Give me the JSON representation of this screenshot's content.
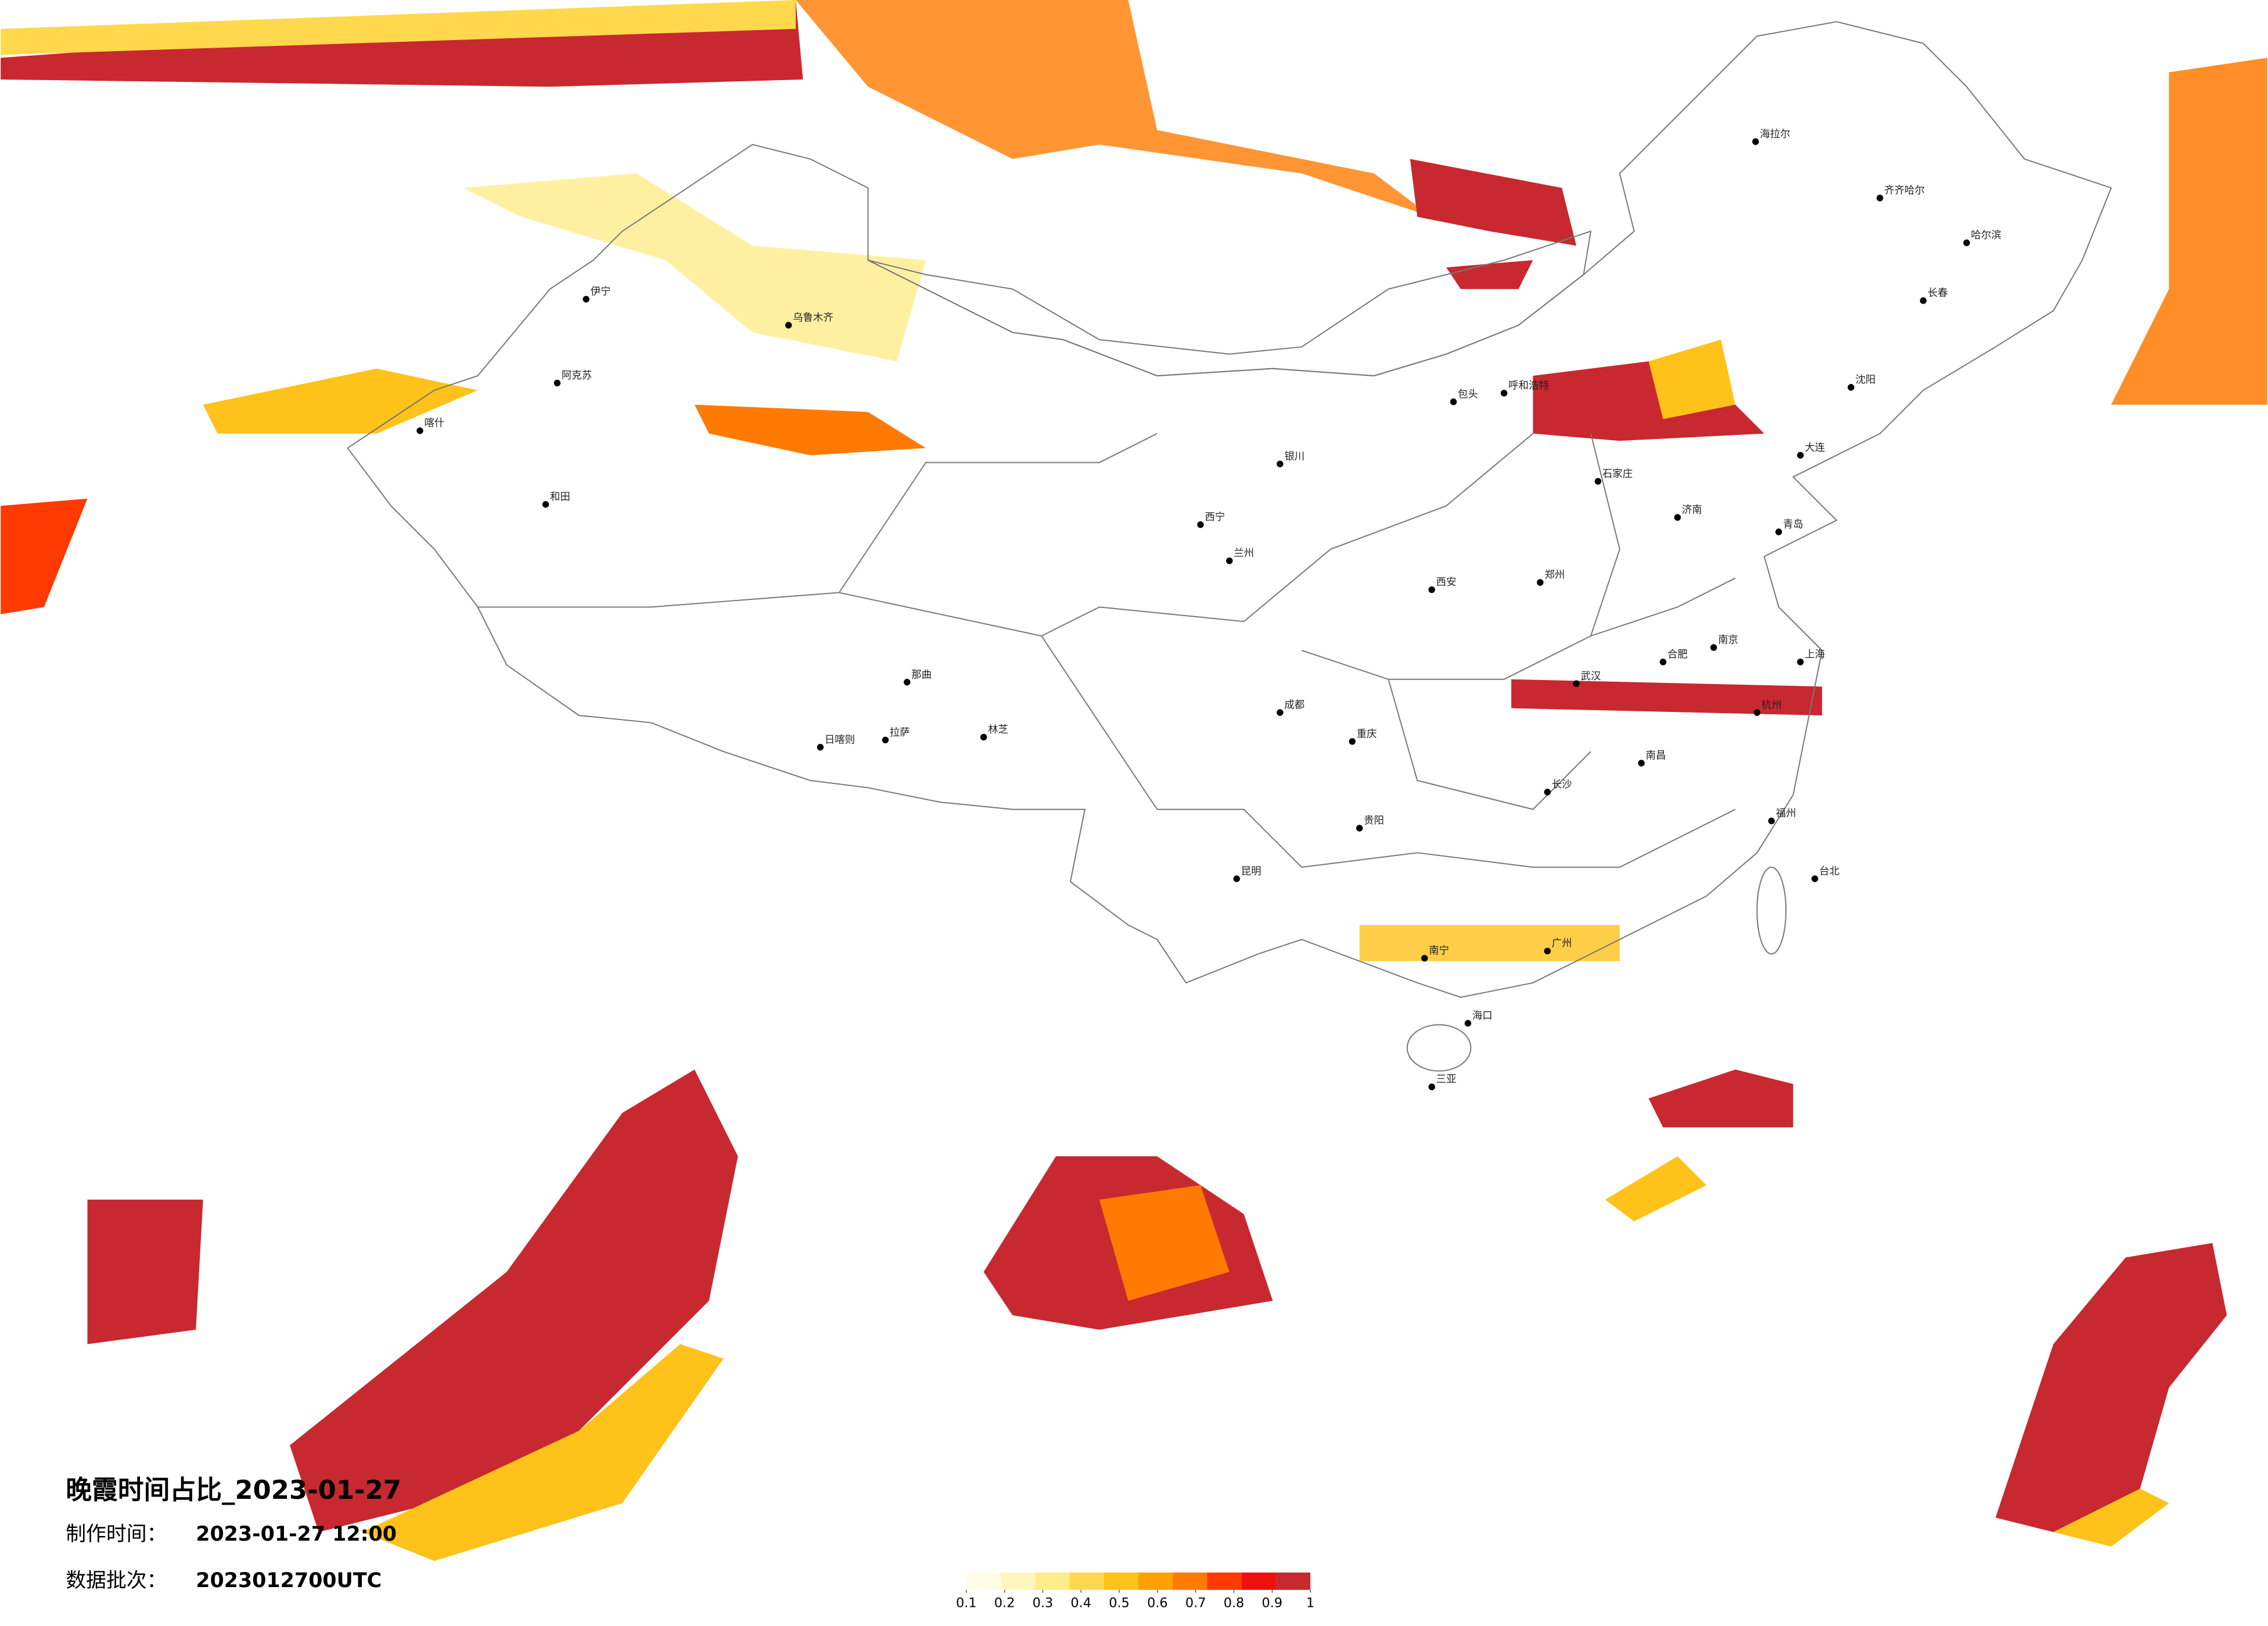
{
  "title": "晚霞时间占比_2023-01-27",
  "made_time_label": "制作时间：",
  "made_time": "2023-01-27 12:00",
  "batch_label": "数据批次：",
  "batch": "2023012700UTC",
  "legend": {
    "colors": [
      "#fffde8",
      "#fff5bf",
      "#ffec8a",
      "#ffd84d",
      "#ffc21a",
      "#ffa000",
      "#ff7a00",
      "#ff3a00",
      "#ee1010",
      "#c8282f"
    ],
    "ticks": [
      0.1,
      0.2,
      0.3,
      0.4,
      0.5,
      0.6,
      0.7,
      0.8,
      0.9,
      1
    ]
  },
  "cities": [
    "乌鲁木齐",
    "伊宁",
    "阿克苏",
    "和田",
    "喀什",
    "日喀则",
    "拉萨",
    "那曲",
    "林芝",
    "海拉尔",
    "齐齐哈尔",
    "哈尔滨",
    "长春",
    "沈阳",
    "大连",
    "呼和浩特",
    "包头",
    "石家庄",
    "济南",
    "青岛",
    "郑州",
    "西安",
    "武汉",
    "南京",
    "上海",
    "杭州",
    "合肥",
    "南昌",
    "长沙",
    "福州",
    "台北",
    "广州",
    "南宁",
    "海口",
    "三亚",
    "贵阳",
    "昆明",
    "成都",
    "重庆",
    "西宁",
    "兰州",
    "银川"
  ]
}
